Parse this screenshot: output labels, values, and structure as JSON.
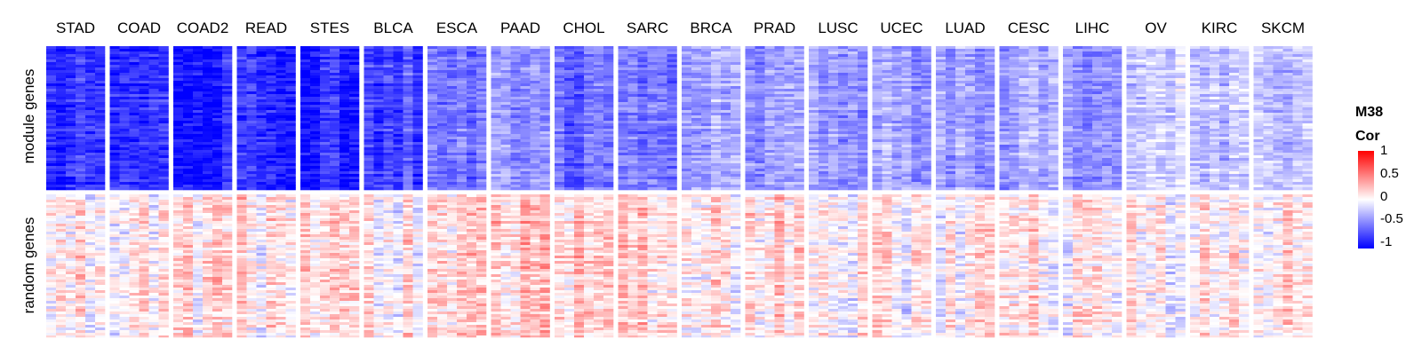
{
  "chart_data": {
    "type": "heatmap",
    "columns": [
      "STAD",
      "COAD",
      "COAD2",
      "READ",
      "STES",
      "BLCA",
      "ESCA",
      "PAAD",
      "CHOL",
      "SARC",
      "BRCA",
      "PRAD",
      "LUSC",
      "UCEC",
      "LUAD",
      "CESC",
      "LIHC",
      "OV",
      "KIRC",
      "SKCM"
    ],
    "rows": [
      "module genes",
      "random genes"
    ],
    "module_mean_cor": [
      -0.85,
      -0.85,
      -0.85,
      -0.85,
      -0.85,
      -0.7,
      -0.55,
      -0.4,
      -0.6,
      -0.5,
      -0.35,
      -0.4,
      -0.35,
      -0.35,
      -0.35,
      -0.3,
      -0.35,
      -0.15,
      -0.25,
      -0.2
    ],
    "random_mean_cor": [
      0.1,
      0.1,
      0.1,
      0.1,
      0.05,
      0.05,
      0.15,
      0.15,
      0.2,
      0.15,
      0.05,
      0.1,
      0.05,
      0.05,
      0.05,
      0.05,
      0.05,
      0.05,
      0.05,
      0.05
    ],
    "legend": {
      "title_line1": "M38",
      "title_line2": "Cor",
      "ticks": [
        "1",
        "0.5",
        "0",
        "-0.5",
        "-1"
      ],
      "range": [
        -1,
        1
      ],
      "colors": {
        "low": "#0000ff",
        "mid": "#ffffff",
        "high": "#ff0000"
      },
      "placement": "right"
    }
  }
}
